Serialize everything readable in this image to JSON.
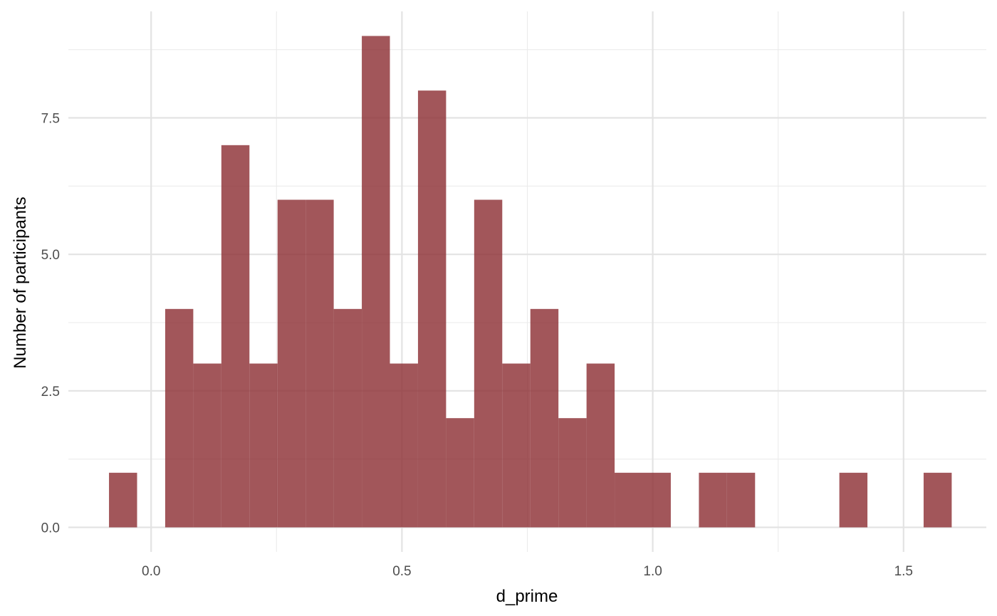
{
  "chart_data": {
    "type": "bar",
    "subtype": "histogram",
    "xlabel": "d_prime",
    "ylabel": "Number of participants",
    "xlim": [
      -0.165,
      1.665
    ],
    "ylim": [
      -0.45,
      9.45
    ],
    "x_ticks": [
      0.0,
      0.5,
      1.0,
      1.5
    ],
    "x_tick_labels": [
      "0.0",
      "0.5",
      "1.0",
      "1.5"
    ],
    "y_ticks": [
      0,
      2.5,
      5.0,
      7.5
    ],
    "y_tick_labels": [
      "0.0",
      "2.5",
      "5.0",
      "7.5"
    ],
    "grid": true,
    "bar_color": "#8b2c31",
    "bar_opacity": 0.8,
    "bins": [
      {
        "x_start": -0.084,
        "x_end": -0.028,
        "count": 1
      },
      {
        "x_start": -0.028,
        "x_end": 0.028,
        "count": 0
      },
      {
        "x_start": 0.028,
        "x_end": 0.084,
        "count": 4
      },
      {
        "x_start": 0.084,
        "x_end": 0.14,
        "count": 3
      },
      {
        "x_start": 0.14,
        "x_end": 0.196,
        "count": 7
      },
      {
        "x_start": 0.196,
        "x_end": 0.252,
        "count": 3
      },
      {
        "x_start": 0.252,
        "x_end": 0.308,
        "count": 6
      },
      {
        "x_start": 0.308,
        "x_end": 0.364,
        "count": 6
      },
      {
        "x_start": 0.364,
        "x_end": 0.42,
        "count": 4
      },
      {
        "x_start": 0.42,
        "x_end": 0.476,
        "count": 9
      },
      {
        "x_start": 0.476,
        "x_end": 0.532,
        "count": 3
      },
      {
        "x_start": 0.532,
        "x_end": 0.588,
        "count": 8
      },
      {
        "x_start": 0.588,
        "x_end": 0.644,
        "count": 2
      },
      {
        "x_start": 0.644,
        "x_end": 0.7,
        "count": 6
      },
      {
        "x_start": 0.7,
        "x_end": 0.756,
        "count": 3
      },
      {
        "x_start": 0.756,
        "x_end": 0.812,
        "count": 4
      },
      {
        "x_start": 0.812,
        "x_end": 0.868,
        "count": 2
      },
      {
        "x_start": 0.868,
        "x_end": 0.924,
        "count": 3
      },
      {
        "x_start": 0.924,
        "x_end": 0.98,
        "count": 1
      },
      {
        "x_start": 0.98,
        "x_end": 1.036,
        "count": 1
      },
      {
        "x_start": 1.036,
        "x_end": 1.092,
        "count": 0
      },
      {
        "x_start": 1.092,
        "x_end": 1.148,
        "count": 1
      },
      {
        "x_start": 1.148,
        "x_end": 1.204,
        "count": 1
      },
      {
        "x_start": 1.204,
        "x_end": 1.26,
        "count": 0
      },
      {
        "x_start": 1.26,
        "x_end": 1.316,
        "count": 0
      },
      {
        "x_start": 1.316,
        "x_end": 1.372,
        "count": 0
      },
      {
        "x_start": 1.372,
        "x_end": 1.428,
        "count": 1
      },
      {
        "x_start": 1.428,
        "x_end": 1.484,
        "count": 0
      },
      {
        "x_start": 1.484,
        "x_end": 1.54,
        "count": 0
      },
      {
        "x_start": 1.54,
        "x_end": 1.596,
        "count": 1
      }
    ]
  }
}
